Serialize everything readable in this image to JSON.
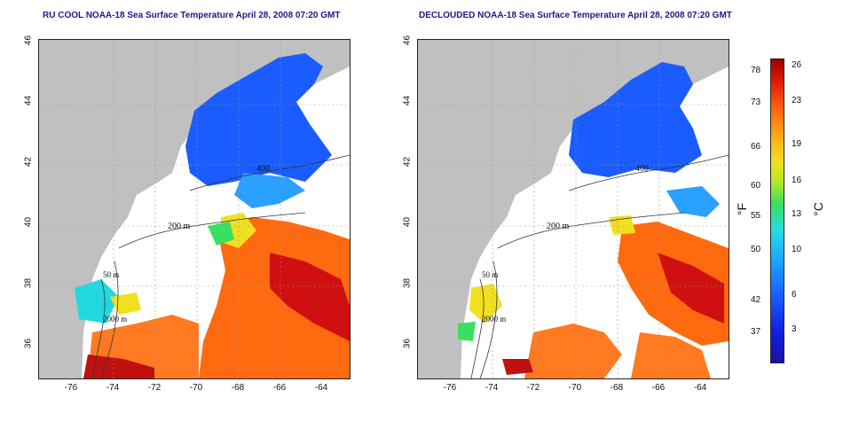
{
  "titles": {
    "left": "RU COOL NOAA-18 Sea Surface Temperature April 28, 2008 07:20 GMT",
    "right": "DECLOUDED NOAA-18 Sea Surface Temperature April 28, 2008 07:20 GMT"
  },
  "axes": {
    "y_ticks": [
      "46",
      "44",
      "42",
      "40",
      "38",
      "36"
    ],
    "x_ticks": [
      "-76",
      "-74",
      "-72",
      "-70",
      "-68",
      "-66",
      "-64"
    ]
  },
  "contours": {
    "label_200": "200 m",
    "label_400": "400",
    "label_50": "50 m",
    "label_2000": "2000 m"
  },
  "colorbar": {
    "fahrenheit_ticks": [
      "78",
      "73",
      "66",
      "60",
      "55",
      "50",
      "42",
      "37"
    ],
    "celsius_ticks": [
      "26",
      "23",
      "19",
      "16",
      "13",
      "10",
      "6",
      "3"
    ],
    "fahrenheit_unit": "°F",
    "celsius_unit": "°C"
  },
  "colors": {
    "land": "#c0c0c0",
    "cold": "#1a5cff",
    "warm": "#ff6010",
    "hot": "#d01010"
  }
}
